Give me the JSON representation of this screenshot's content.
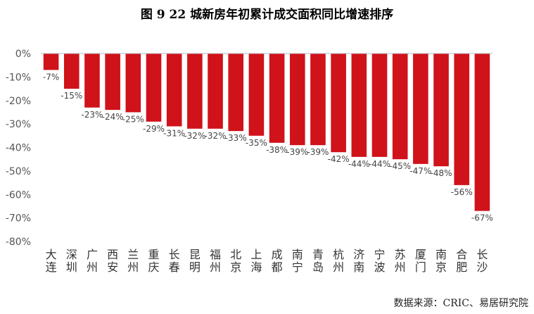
{
  "title": "图 9   22 城新房年初累计成交面积同比增速排序",
  "source": "数据来源：CRIC、易居研究院",
  "colors": {
    "bar": "#d0121b",
    "axis": "#555555"
  },
  "chart_data": {
    "type": "bar",
    "title": "图 9   22 城新房年初累计成交面积同比增速排序",
    "xlabel": "",
    "ylabel": "",
    "ylim": [
      -80,
      0
    ],
    "yticks": [
      0,
      -10,
      -20,
      -30,
      -40,
      -50,
      -60,
      -70,
      -80
    ],
    "ytick_labels": [
      "0%",
      "-10%",
      "-20%",
      "-30%",
      "-40%",
      "-50%",
      "-60%",
      "-70%",
      "-80%"
    ],
    "categories": [
      "大连",
      "深圳",
      "广州",
      "西安",
      "兰州",
      "重庆",
      "长春",
      "昆明",
      "福州",
      "北京",
      "上海",
      "成都",
      "南宁",
      "青岛",
      "杭州",
      "济南",
      "宁波",
      "苏州",
      "厦门",
      "南京",
      "合肥",
      "长沙"
    ],
    "values": [
      -7,
      -15,
      -23,
      -24,
      -25,
      -29,
      -31,
      -32,
      -32,
      -33,
      -35,
      -38,
      -39,
      -39,
      -42,
      -44,
      -44,
      -45,
      -47,
      -48,
      -56,
      -67
    ],
    "data_labels": [
      "-7%",
      "-15%",
      "-23%",
      "-24%",
      "-25%",
      "-29%",
      "-31%",
      "-32%",
      "-32%",
      "-33%",
      "-35%",
      "-38%",
      "-39%",
      "-39%",
      "-42%",
      "-44%",
      "-44%",
      "-45%",
      "-47%",
      "-48%",
      "-56%",
      "-67%"
    ],
    "grid": false,
    "legend": "none"
  }
}
